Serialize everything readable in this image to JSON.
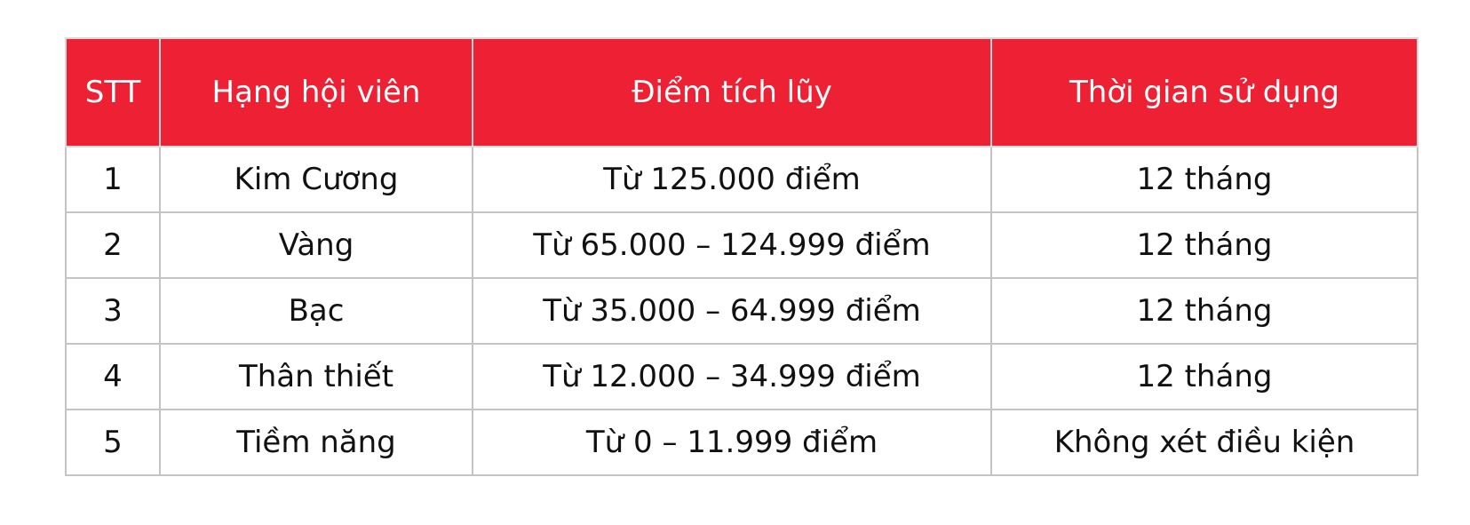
{
  "table": {
    "headers": [
      "STT",
      "Hạng hội viên",
      "Điểm tích lũy",
      "Thời gian sử dụng"
    ],
    "rows": [
      [
        "1",
        "Kim Cương",
        "Từ 125.000 điểm",
        "12 tháng"
      ],
      [
        "2",
        "Vàng",
        "Từ 65.000 – 124.999 điểm",
        "12 tháng"
      ],
      [
        "3",
        "Bạc",
        "Từ 35.000 – 64.999 điểm",
        "12 tháng"
      ],
      [
        "4",
        "Thân thiết",
        "Từ 12.000 – 34.999 điểm",
        "12 tháng"
      ],
      [
        "5",
        "Tiềm năng",
        "Từ 0 – 11.999 điểm",
        "Không xét điều kiện"
      ]
    ]
  },
  "colors": {
    "header_background": "#ee2033",
    "header_text": "#ffffff",
    "border": "#c4c4c4",
    "body_text": "#111111"
  }
}
